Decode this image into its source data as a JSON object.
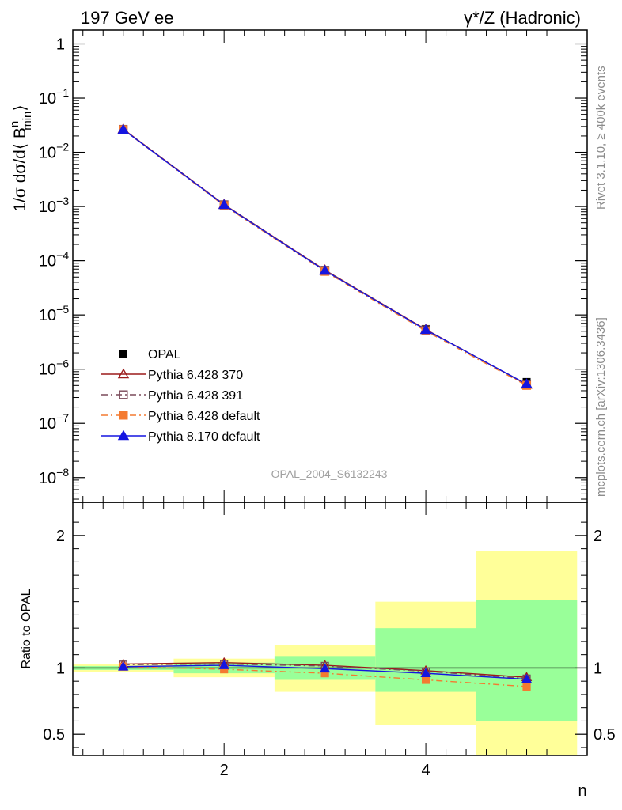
{
  "header": {
    "left_title": "197 GeV ee",
    "right_title_prefix": "γ*/Z (Hadronic)"
  },
  "side_labels": {
    "rivet": "Rivet 3.1.10, ≥ 400k events",
    "mcplots": "mcplots.cern.ch [arXiv:1306.3436]"
  },
  "analysis_label": "OPAL_2004_S6132243",
  "chart_data": [
    {
      "type": "line",
      "panel": "main",
      "ylabel": "1/σ dσ/d⟨ B",
      "ylabel_super": "n",
      "ylabel_sub": "min",
      "ylabel_close": "⟩",
      "yscale": "log",
      "ylim": [
        3.5e-09,
        1.8
      ],
      "xlim": [
        0.5,
        5.6
      ],
      "yticks": [
        {
          "value": 1,
          "label": "1"
        },
        {
          "value": 0.1,
          "label": "10",
          "exp": "−1"
        },
        {
          "value": 0.01,
          "label": "10",
          "exp": "−2"
        },
        {
          "value": 0.001,
          "label": "10",
          "exp": "−3"
        },
        {
          "value": 0.0001,
          "label": "10",
          "exp": "−4"
        },
        {
          "value": 1e-05,
          "label": "10",
          "exp": "−5"
        },
        {
          "value": 1e-06,
          "label": "10",
          "exp": "−6"
        },
        {
          "value": 1e-07,
          "label": "10",
          "exp": "−7"
        },
        {
          "value": 1e-08,
          "label": "10",
          "exp": "−8"
        }
      ],
      "x": [
        1,
        2,
        3,
        4,
        5
      ],
      "data": {
        "name": "OPAL",
        "values": [
          0.026,
          0.00105,
          6.6e-05,
          5.5e-06,
          5.8e-07
        ]
      },
      "series": [
        {
          "name": "Pythia 6.428 370",
          "color": "#9c1a1a",
          "marker": "open-triangle",
          "dash": "",
          "values": [
            0.0268,
            0.00109,
            6.72e-05,
            5.4e-06,
            5.2e-07
          ]
        },
        {
          "name": "Pythia 6.428 391",
          "color": "#7a4a5a",
          "marker": "open-square",
          "dash": "8,4,2,4",
          "values": [
            0.0266,
            0.00108,
            6.68e-05,
            5.35e-06,
            5.3e-07
          ]
        },
        {
          "name": "Pythia 6.428 default",
          "color": "#f47a30",
          "marker": "filled-square",
          "dash": "8,4,2,4",
          "values": [
            0.0262,
            0.00104,
            6.34e-05,
            5.05e-06,
            5e-07
          ]
        },
        {
          "name": "Pythia 8.170 default",
          "color": "#1515e0",
          "marker": "filled-triangle",
          "dash": "",
          "values": [
            0.0263,
            0.00107,
            6.56e-05,
            5.3e-06,
            5.3e-07
          ]
        }
      ]
    },
    {
      "type": "line",
      "panel": "ratio",
      "ylabel": "Ratio to OPAL",
      "xlabel": "n",
      "ylim": [
        0.34,
        2.25
      ],
      "xlim": [
        0.5,
        5.6
      ],
      "yticks": [
        {
          "value": 0.5,
          "label": "0.5"
        },
        {
          "value": 1,
          "label": "1"
        },
        {
          "value": 2,
          "label": "2"
        }
      ],
      "xticks": [
        {
          "value": 2,
          "label": "2"
        },
        {
          "value": 4,
          "label": "4"
        }
      ],
      "bands": [
        {
          "x0": 0.5,
          "x1": 1.5,
          "inner": [
            0.985,
            1.015
          ],
          "outer": [
            0.97,
            1.03
          ]
        },
        {
          "x0": 1.5,
          "x1": 2.5,
          "inner": [
            0.96,
            1.04
          ],
          "outer": [
            0.93,
            1.07
          ]
        },
        {
          "x0": 2.5,
          "x1": 3.5,
          "inner": [
            0.91,
            1.09
          ],
          "outer": [
            0.82,
            1.17
          ]
        },
        {
          "x0": 3.5,
          "x1": 4.5,
          "inner": [
            0.82,
            1.3
          ],
          "outer": [
            0.57,
            1.5
          ]
        },
        {
          "x0": 4.5,
          "x1": 5.5,
          "inner": [
            0.6,
            1.51
          ],
          "outer": [
            0.34,
            1.88
          ]
        }
      ],
      "x": [
        1,
        2,
        3,
        4,
        5
      ],
      "series": [
        {
          "name": "Pythia 6.428 370",
          "color": "#9c1a1a",
          "marker": "open-triangle",
          "dash": "",
          "values": [
            1.03,
            1.04,
            1.02,
            0.98,
            0.93
          ]
        },
        {
          "name": "Pythia 6.428 391",
          "color": "#7a4a5a",
          "marker": "open-square",
          "dash": "8,4,2,4",
          "values": [
            1.025,
            1.03,
            1.015,
            0.975,
            0.92
          ]
        },
        {
          "name": "Pythia 6.428 default",
          "color": "#f47a30",
          "marker": "filled-square",
          "dash": "8,4,2,4",
          "values": [
            1.01,
            0.99,
            0.96,
            0.91,
            0.86
          ]
        },
        {
          "name": "Pythia 8.170 default",
          "color": "#1515e0",
          "marker": "filled-triangle",
          "dash": "",
          "values": [
            1.01,
            1.02,
            0.995,
            0.96,
            0.915
          ]
        }
      ]
    }
  ]
}
